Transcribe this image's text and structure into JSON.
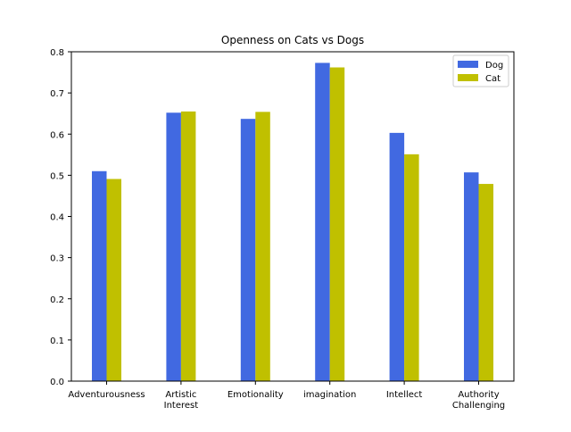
{
  "chart_data": {
    "type": "bar",
    "title": "Openness on Cats vs Dogs",
    "xlabel": "",
    "ylabel": "",
    "categories": [
      [
        "Adventurousness"
      ],
      [
        "Artistic",
        "Interest"
      ],
      [
        "Emotionality"
      ],
      [
        "imagination"
      ],
      [
        "Intellect"
      ],
      [
        "Authority",
        "Challenging"
      ]
    ],
    "series": [
      {
        "name": "Dog",
        "color": "#4169e1",
        "values": [
          0.51,
          0.652,
          0.637,
          0.773,
          0.603,
          0.507
        ]
      },
      {
        "name": "Cat",
        "color": "#c0c000",
        "values": [
          0.491,
          0.655,
          0.654,
          0.762,
          0.551,
          0.479
        ]
      }
    ],
    "ylim": [
      0,
      0.8
    ],
    "yticks": [
      "0.0",
      "0.1",
      "0.2",
      "0.3",
      "0.4",
      "0.5",
      "0.6",
      "0.7",
      "0.8"
    ],
    "legend_position": "top-right",
    "grid": false
  }
}
